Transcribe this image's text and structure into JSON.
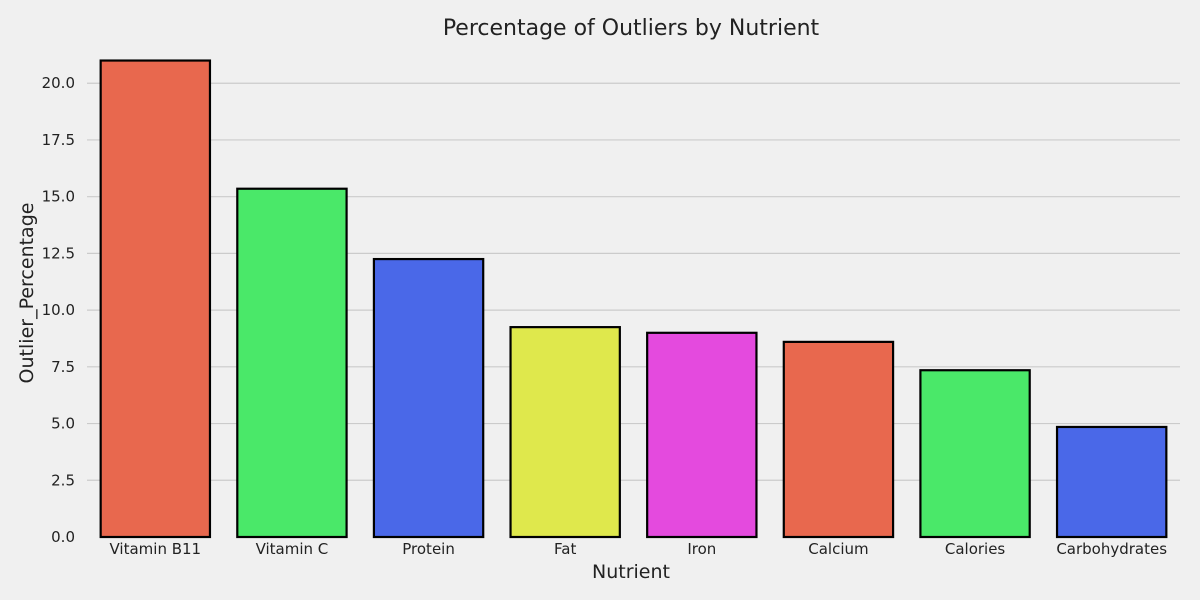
{
  "chart_data": {
    "type": "bar",
    "title": "Percentage of Outliers by Nutrient",
    "xlabel": "Nutrient",
    "ylabel": "Outlier_Percentage",
    "categories": [
      "Vitamin B11",
      "Vitamin C",
      "Protein",
      "Fat",
      "Iron",
      "Calcium",
      "Calories",
      "Carbohydrates"
    ],
    "values": [
      21.0,
      15.35,
      12.25,
      9.25,
      9.0,
      8.6,
      7.35,
      4.85
    ],
    "colors": [
      "#e8684e",
      "#4ae869",
      "#4a68e8",
      "#dfe84c",
      "#e44ade",
      "#e8684e",
      "#4ae869",
      "#4a68e8"
    ],
    "ylim": [
      0,
      21.2
    ],
    "yticks": [
      0.0,
      2.5,
      5.0,
      7.5,
      10.0,
      12.5,
      15.0,
      17.5,
      20.0
    ],
    "ytick_labels": [
      "0.0",
      "2.5",
      "5.0",
      "7.5",
      "10.0",
      "12.5",
      "15.0",
      "17.5",
      "20.0"
    ],
    "grid": "horizontal",
    "legend": "none",
    "background": "#f0f0f0",
    "grid_color": "#cbcbcb",
    "bar_edge_color": "#000000"
  }
}
